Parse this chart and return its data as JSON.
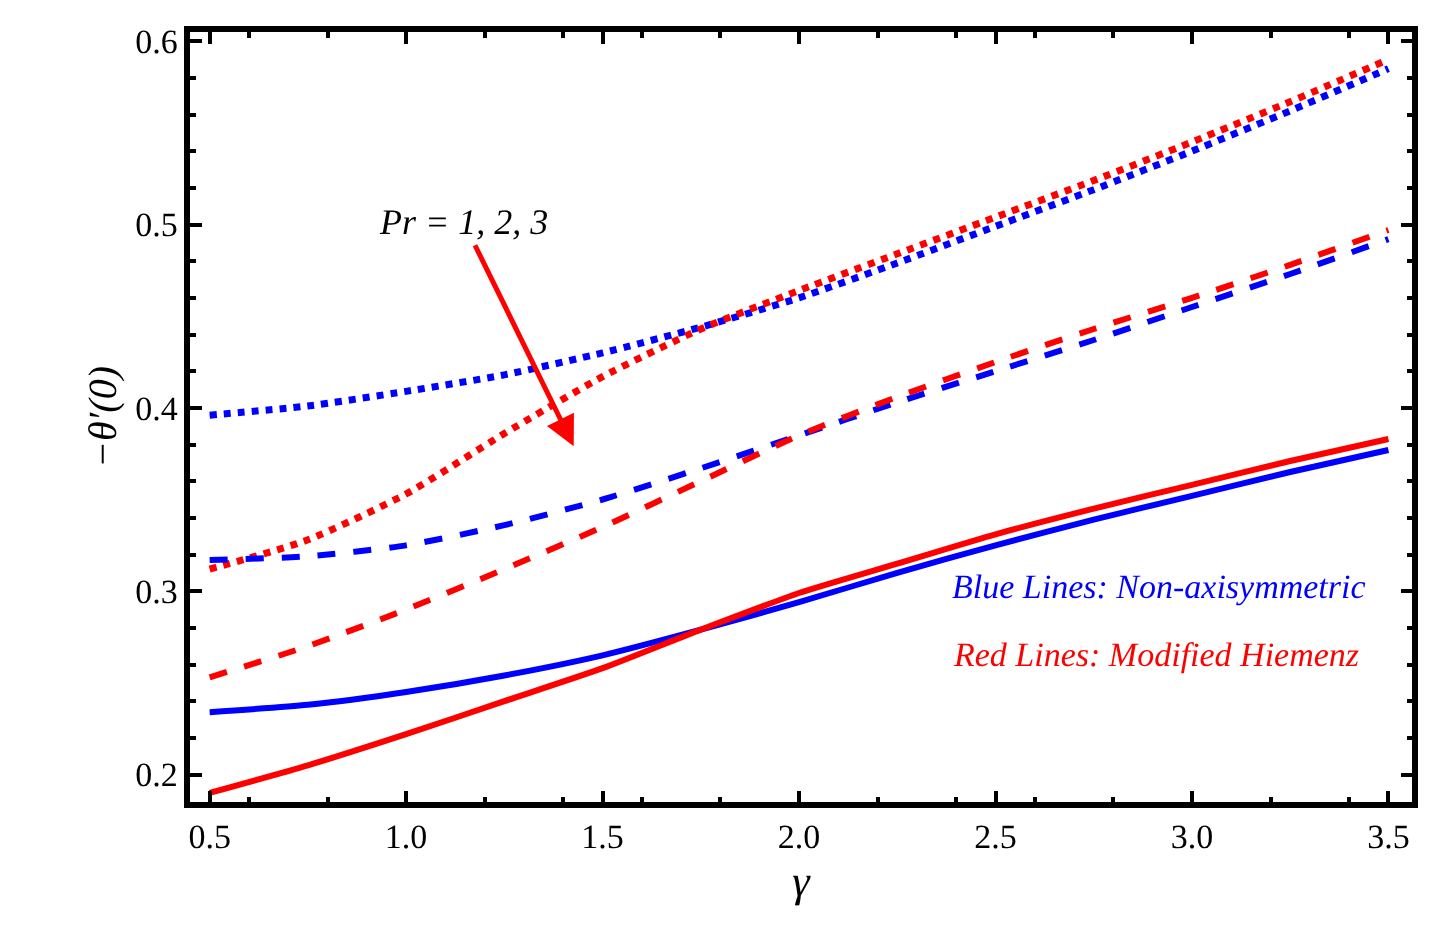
{
  "chart_data": {
    "type": "line",
    "xlabel": "γ",
    "ylabel": "−θ′(0)",
    "xlim": [
      0.45,
      3.56
    ],
    "ylim": [
      0.185,
      0.605
    ],
    "xticks": [
      {
        "value": 0.5,
        "label": "0.5"
      },
      {
        "value": 1.0,
        "label": "1.0"
      },
      {
        "value": 1.5,
        "label": "1.5"
      },
      {
        "value": 2.0,
        "label": "2.0"
      },
      {
        "value": 2.5,
        "label": "2.5"
      },
      {
        "value": 3.0,
        "label": "3.0"
      },
      {
        "value": 3.5,
        "label": "3.5"
      }
    ],
    "yticks": [
      0.2,
      0.3,
      0.4,
      0.5,
      0.6
    ],
    "x": [
      0.5,
      0.75,
      1.0,
      1.25,
      1.5,
      1.75,
      2.0,
      2.25,
      2.5,
      2.75,
      3.0,
      3.25,
      3.5
    ],
    "grid": false,
    "marker": "none",
    "series": [
      {
        "color": "#0000ff",
        "line_style": "dotted",
        "values": [
          0.396,
          0.401,
          0.409,
          0.418,
          0.43,
          0.444,
          0.46,
          0.479,
          0.499,
          0.519,
          0.54,
          0.562,
          0.585
        ]
      },
      {
        "color": "#ff0000",
        "line_style": "dotted",
        "values": [
          0.312,
          0.328,
          0.353,
          0.386,
          0.417,
          0.443,
          0.464,
          0.484,
          0.504,
          0.524,
          0.545,
          0.567,
          0.59
        ]
      },
      {
        "color": "#0000ff",
        "line_style": "dashed",
        "values": [
          0.317,
          0.319,
          0.325,
          0.336,
          0.35,
          0.367,
          0.385,
          0.403,
          0.42,
          0.437,
          0.455,
          0.473,
          0.492
        ]
      },
      {
        "color": "#ff0000",
        "line_style": "dashed",
        "values": [
          0.253,
          0.27,
          0.29,
          0.312,
          0.335,
          0.36,
          0.385,
          0.406,
          0.425,
          0.443,
          0.46,
          0.478,
          0.497
        ]
      },
      {
        "color": "#0000ff",
        "line_style": "solid",
        "values": [
          0.234,
          0.238,
          0.245,
          0.254,
          0.265,
          0.279,
          0.294,
          0.31,
          0.325,
          0.339,
          0.352,
          0.365,
          0.377
        ]
      },
      {
        "color": "#ff0000",
        "line_style": "solid",
        "values": [
          0.19,
          0.205,
          0.222,
          0.24,
          0.258,
          0.279,
          0.299,
          0.315,
          0.331,
          0.345,
          0.358,
          0.371,
          0.383
        ]
      }
    ],
    "annotations": [
      "Pr = 1, 2, 3",
      "Blue Lines: Non-axisymmetric",
      "Red Lines: Modified Hiemenz"
    ]
  }
}
